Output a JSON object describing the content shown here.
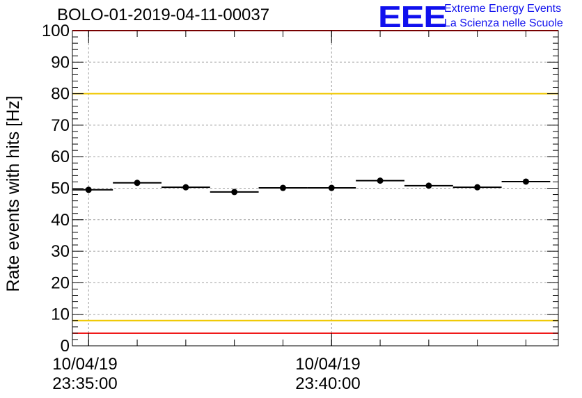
{
  "run_title": "BOLO-01-2019-04-11-00037",
  "logo": {
    "mark": "EEE",
    "line1": "Extreme Energy Events",
    "line2": "La Scienza nelle Scuole",
    "color": "#1010ee"
  },
  "chart_data": {
    "type": "scatter",
    "title": "",
    "xlabel": "",
    "ylabel": "Rate events with hits [Hz]",
    "ylim": [
      0,
      100
    ],
    "y_ticks": [
      "0",
      "10",
      "20",
      "30",
      "40",
      "50",
      "60",
      "70",
      "80",
      "90",
      "100"
    ],
    "x_tick_labels": [
      {
        "time": "10/04/19 23:35:00",
        "date": "10/04/19",
        "clock": "23:35:00"
      },
      {
        "time": "10/04/19 23:40:00",
        "date": "10/04/19",
        "clock": "23:40:00"
      }
    ],
    "xlim": [
      "10/04/19 23:34:40",
      "10/04/19 23:44:40"
    ],
    "grid": true,
    "points": [
      {
        "x": "10/04/19 23:35:00",
        "y": 49.5
      },
      {
        "x": "10/04/19 23:36:00",
        "y": 51.7
      },
      {
        "x": "10/04/19 23:37:00",
        "y": 50.3
      },
      {
        "x": "10/04/19 23:38:00",
        "y": 48.8
      },
      {
        "x": "10/04/19 23:39:00",
        "y": 50.1
      },
      {
        "x": "10/04/19 23:40:00",
        "y": 50.1
      },
      {
        "x": "10/04/19 23:41:00",
        "y": 52.4
      },
      {
        "x": "10/04/19 23:42:00",
        "y": 50.8
      },
      {
        "x": "10/04/19 23:43:00",
        "y": 50.3
      },
      {
        "x": "10/04/19 23:44:00",
        "y": 52.1
      }
    ],
    "bin_width_seconds": 60,
    "reference_lines": [
      {
        "y": 100,
        "color": "#ee0000"
      },
      {
        "y": 80,
        "color": "#f0c800"
      },
      {
        "y": 8,
        "color": "#f0c800"
      },
      {
        "y": 4,
        "color": "#ee0000"
      }
    ]
  }
}
